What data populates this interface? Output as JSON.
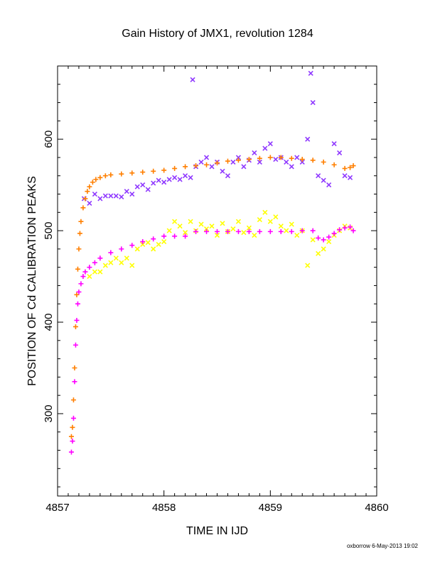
{
  "chart_data": {
    "type": "scatter",
    "title": "Gain History of JMX1, revolution 1284",
    "xlabel": "TIME IN IJD",
    "ylabel": "POSITION OF Cd CALIBRATION PEAKS",
    "xlim": [
      4857,
      4860
    ],
    "ylim": [
      210,
      680
    ],
    "xticks": [
      4857,
      4858,
      4859,
      4860
    ],
    "xtick_labels": [
      "4857",
      "4858",
      "4859",
      "4860"
    ],
    "yticks": [
      300,
      400,
      500,
      600
    ],
    "ytick_labels": [
      "300",
      "400",
      "500",
      "600"
    ],
    "grid": false,
    "legend": "none",
    "footer": "oxborrow  6-May-2013 19:02",
    "series": [
      {
        "color": "#FF7F00",
        "marker": "+",
        "points": [
          [
            4857.13,
            275
          ],
          [
            4857.14,
            285
          ],
          [
            4857.15,
            315
          ],
          [
            4857.16,
            350
          ],
          [
            4857.17,
            395
          ],
          [
            4857.18,
            430
          ],
          [
            4857.19,
            458
          ],
          [
            4857.2,
            480
          ],
          [
            4857.21,
            497
          ],
          [
            4857.22,
            510
          ],
          [
            4857.24,
            525
          ],
          [
            4857.26,
            535
          ],
          [
            4857.28,
            543
          ],
          [
            4857.3,
            548
          ],
          [
            4857.33,
            553
          ],
          [
            4857.36,
            556
          ],
          [
            4857.4,
            558
          ],
          [
            4857.45,
            560
          ],
          [
            4857.5,
            561
          ],
          [
            4857.6,
            562
          ],
          [
            4857.7,
            563
          ],
          [
            4857.8,
            564
          ],
          [
            4857.9,
            565
          ],
          [
            4858.0,
            566
          ],
          [
            4858.1,
            568
          ],
          [
            4858.2,
            570
          ],
          [
            4858.3,
            571
          ],
          [
            4858.4,
            572
          ],
          [
            4858.5,
            574
          ],
          [
            4858.6,
            576
          ],
          [
            4858.7,
            577
          ],
          [
            4858.8,
            578
          ],
          [
            4858.9,
            579
          ],
          [
            4859.0,
            580
          ],
          [
            4859.1,
            580
          ],
          [
            4859.2,
            579
          ],
          [
            4859.3,
            578
          ],
          [
            4859.4,
            577
          ],
          [
            4859.5,
            575
          ],
          [
            4859.6,
            572
          ],
          [
            4859.7,
            568
          ],
          [
            4859.75,
            569
          ],
          [
            4859.78,
            571
          ]
        ]
      },
      {
        "color": "#FF00FF",
        "marker": "+",
        "points": [
          [
            4857.13,
            258
          ],
          [
            4857.14,
            270
          ],
          [
            4857.15,
            295
          ],
          [
            4857.16,
            335
          ],
          [
            4857.17,
            375
          ],
          [
            4857.18,
            402
          ],
          [
            4857.19,
            420
          ],
          [
            4857.2,
            433
          ],
          [
            4857.22,
            442
          ],
          [
            4857.24,
            450
          ],
          [
            4857.26,
            455
          ],
          [
            4857.3,
            460
          ],
          [
            4857.35,
            465
          ],
          [
            4857.4,
            470
          ],
          [
            4857.5,
            476
          ],
          [
            4857.6,
            480
          ],
          [
            4857.7,
            484
          ],
          [
            4857.8,
            488
          ],
          [
            4857.9,
            491
          ],
          [
            4858.0,
            494
          ],
          [
            4858.1,
            494
          ],
          [
            4858.2,
            494
          ],
          [
            4858.3,
            499
          ],
          [
            4858.4,
            499
          ],
          [
            4858.5,
            499
          ],
          [
            4858.6,
            499
          ],
          [
            4858.7,
            499
          ],
          [
            4858.8,
            499
          ],
          [
            4858.9,
            499
          ],
          [
            4859.0,
            499
          ],
          [
            4859.1,
            499
          ],
          [
            4859.2,
            499
          ],
          [
            4859.3,
            500
          ],
          [
            4859.4,
            500
          ],
          [
            4859.45,
            492
          ],
          [
            4859.5,
            490
          ],
          [
            4859.55,
            493
          ],
          [
            4859.6,
            497
          ],
          [
            4859.65,
            501
          ],
          [
            4859.7,
            503
          ],
          [
            4859.75,
            504
          ],
          [
            4859.78,
            500
          ]
        ]
      },
      {
        "color": "#8F38FF",
        "marker": "x",
        "points": [
          [
            4857.25,
            535
          ],
          [
            4857.3,
            530
          ],
          [
            4857.35,
            540
          ],
          [
            4857.4,
            535
          ],
          [
            4857.45,
            538
          ],
          [
            4857.5,
            538
          ],
          [
            4857.55,
            538
          ],
          [
            4857.6,
            537
          ],
          [
            4857.65,
            543
          ],
          [
            4857.7,
            540
          ],
          [
            4857.75,
            548
          ],
          [
            4857.8,
            550
          ],
          [
            4857.85,
            545
          ],
          [
            4857.9,
            552
          ],
          [
            4857.95,
            555
          ],
          [
            4858.0,
            553
          ],
          [
            4858.05,
            556
          ],
          [
            4858.1,
            558
          ],
          [
            4858.15,
            556
          ],
          [
            4858.2,
            560
          ],
          [
            4858.25,
            558
          ],
          [
            4858.27,
            665
          ],
          [
            4858.3,
            570
          ],
          [
            4858.35,
            575
          ],
          [
            4858.4,
            580
          ],
          [
            4858.45,
            570
          ],
          [
            4858.5,
            575
          ],
          [
            4858.55,
            565
          ],
          [
            4858.6,
            560
          ],
          [
            4858.65,
            575
          ],
          [
            4858.7,
            580
          ],
          [
            4858.75,
            570
          ],
          [
            4858.8,
            577
          ],
          [
            4858.85,
            585
          ],
          [
            4858.9,
            575
          ],
          [
            4858.95,
            590
          ],
          [
            4859.0,
            595
          ],
          [
            4859.05,
            578
          ],
          [
            4859.1,
            580
          ],
          [
            4859.15,
            575
          ],
          [
            4859.2,
            570
          ],
          [
            4859.25,
            580
          ],
          [
            4859.3,
            575
          ],
          [
            4859.35,
            600
          ],
          [
            4859.38,
            672
          ],
          [
            4859.4,
            640
          ],
          [
            4859.45,
            560
          ],
          [
            4859.5,
            555
          ],
          [
            4859.55,
            550
          ],
          [
            4859.6,
            595
          ],
          [
            4859.65,
            585
          ],
          [
            4859.7,
            560
          ],
          [
            4859.75,
            558
          ]
        ]
      },
      {
        "color": "#FFFF00",
        "marker": "x",
        "points": [
          [
            4857.3,
            450
          ],
          [
            4857.35,
            455
          ],
          [
            4857.4,
            455
          ],
          [
            4857.45,
            462
          ],
          [
            4857.5,
            465
          ],
          [
            4857.55,
            470
          ],
          [
            4857.6,
            465
          ],
          [
            4857.65,
            470
          ],
          [
            4857.7,
            462
          ],
          [
            4857.75,
            480
          ],
          [
            4857.8,
            485
          ],
          [
            4857.85,
            487
          ],
          [
            4857.9,
            480
          ],
          [
            4857.95,
            485
          ],
          [
            4858.0,
            488
          ],
          [
            4858.05,
            500
          ],
          [
            4858.1,
            510
          ],
          [
            4858.15,
            505
          ],
          [
            4858.2,
            498
          ],
          [
            4858.25,
            510
          ],
          [
            4858.3,
            500
          ],
          [
            4858.35,
            507
          ],
          [
            4858.4,
            502
          ],
          [
            4858.45,
            505
          ],
          [
            4858.5,
            495
          ],
          [
            4858.55,
            508
          ],
          [
            4858.6,
            499
          ],
          [
            4858.65,
            502
          ],
          [
            4858.7,
            510
          ],
          [
            4858.75,
            498
          ],
          [
            4858.8,
            503
          ],
          [
            4858.85,
            495
          ],
          [
            4858.9,
            512
          ],
          [
            4858.95,
            520
          ],
          [
            4859.0,
            510
          ],
          [
            4859.05,
            515
          ],
          [
            4859.1,
            505
          ],
          [
            4859.15,
            500
          ],
          [
            4859.2,
            507
          ],
          [
            4859.25,
            495
          ],
          [
            4859.3,
            500
          ],
          [
            4859.35,
            462
          ],
          [
            4859.4,
            490
          ],
          [
            4859.45,
            475
          ],
          [
            4859.5,
            480
          ],
          [
            4859.55,
            488
          ],
          [
            4859.6,
            495
          ],
          [
            4859.65,
            500
          ],
          [
            4859.7,
            505
          ],
          [
            4859.75,
            503
          ]
        ]
      }
    ]
  }
}
